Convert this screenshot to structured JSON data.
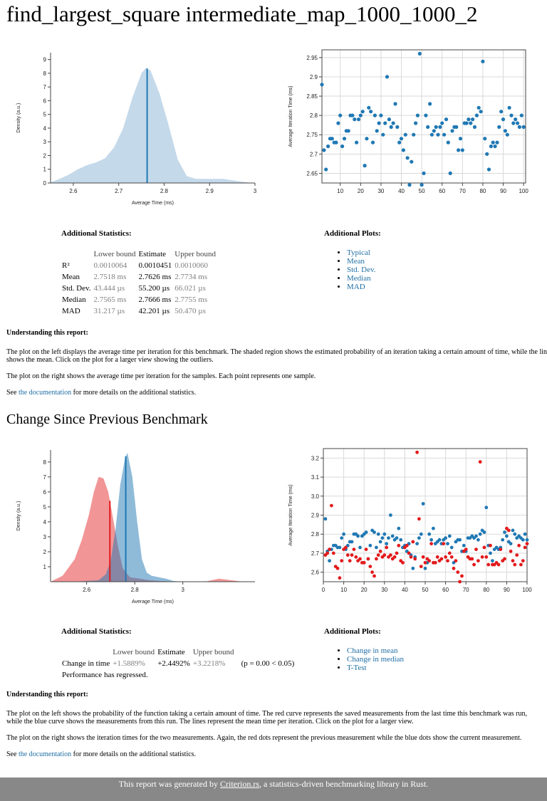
{
  "title": "find_largest_square intermediate_map_1000_1000_2",
  "pdf1": {
    "ylabel": "Density (a.u.)",
    "xlabel": "Average Time (ms)",
    "y_ticks": [
      "0",
      "1",
      "2",
      "3",
      "4",
      "5",
      "6",
      "7",
      "8",
      "9"
    ],
    "x_ticks": [
      "2.6",
      "2.7",
      "2.8",
      "2.9",
      "3"
    ]
  },
  "reg1": {
    "ylabel": "Average Iteration Time (ms)",
    "y_ticks": [
      "2.65",
      "2.7",
      "2.75",
      "2.8",
      "2.85",
      "2.9",
      "2.95"
    ],
    "x_ticks": [
      "10",
      "20",
      "30",
      "40",
      "50",
      "60",
      "70",
      "80",
      "90",
      "100"
    ]
  },
  "stats1": {
    "title": "Additional Statistics:",
    "headers": [
      "Lower bound",
      "Estimate",
      "Upper bound"
    ],
    "rows": [
      {
        "label": "R²",
        "lower": "0.0010064",
        "estimate": "0.0010451",
        "upper": "0.0010060"
      },
      {
        "label": "Mean",
        "lower": "2.7518 ms",
        "estimate": "2.7626 ms",
        "upper": "2.7734 ms"
      },
      {
        "label": "Std. Dev.",
        "lower": "43.444 µs",
        "estimate": "55.200 µs",
        "upper": "66.021 µs"
      },
      {
        "label": "Median",
        "lower": "2.7565 ms",
        "estimate": "2.7666 ms",
        "upper": "2.7755 ms"
      },
      {
        "label": "MAD",
        "lower": "31.217 µs",
        "estimate": "42.201 µs",
        "upper": "50.470 µs"
      }
    ]
  },
  "plots1": {
    "title": "Additional Plots:",
    "links": [
      "Typical",
      "Mean",
      "Std. Dev.",
      "Median",
      "MAD"
    ]
  },
  "understanding1": {
    "heading": "Understanding this report:",
    "p1": "The plot on the left displays the average time per iteration for this benchmark. The shaded region shows the estimated probability of an iteration taking a certain amount of time, while the line shows the mean. Click on the plot for a larger view showing the outliers.",
    "p2": "The plot on the right shows the average time per iteration for the samples. Each point represents one sample.",
    "see_pre": "See ",
    "doc_link": "the documentation",
    "see_post": " for more details on the additional statistics."
  },
  "change_section_title": "Change Since Previous Benchmark",
  "pdf2": {
    "ylabel": "Density (a.u.)",
    "xlabel": "Average Time (ms)",
    "y_ticks": [
      "1",
      "2",
      "3",
      "4",
      "5",
      "6",
      "7",
      "8"
    ],
    "x_ticks": [
      "2.6",
      "2.8",
      "3"
    ]
  },
  "reg2": {
    "ylabel": "Average Iteration Time (ms)",
    "y_ticks": [
      "2.6",
      "2.7",
      "2.8",
      "2.9",
      "3.0",
      "3.1",
      "3.2"
    ],
    "x_ticks": [
      "0",
      "10",
      "20",
      "30",
      "40",
      "50",
      "60",
      "70",
      "80",
      "90",
      "100"
    ]
  },
  "stats2": {
    "title": "Additional Statistics:",
    "headers": [
      "Lower bound",
      "Estimate",
      "Upper bound"
    ],
    "row_label": "Change in time",
    "lower": "+1.5889%",
    "estimate": "+2.4492%",
    "upper": "+3.2218%",
    "pvalue": "(p = 0.00 < 0.05)",
    "verdict": "Performance has regressed."
  },
  "plots2": {
    "title": "Additional Plots:",
    "links": [
      "Change in mean",
      "Change in median",
      "T-Test"
    ]
  },
  "understanding2": {
    "heading": "Understanding this report:",
    "p1": "The plot on the left shows the probability of the function taking a certain amount of time. The red curve represents the saved measurements from the last time this benchmark was run, while the blue curve shows the measurements from this run. The lines represent the mean time per iteration. Click on the plot for a larger view.",
    "p2": "The plot on the right shows the iteration times for the two measurements. Again, the red dots represent the previous measurement while the blue dots show the current measurement.",
    "see_pre": "See ",
    "doc_link": "the documentation",
    "see_post": " for more details on the additional statistics."
  },
  "footer": {
    "pre": "This report was generated by ",
    "link": "Criterion.rs",
    "post": ", a statistics-driven benchmarking library in Rust."
  },
  "colors": {
    "current": "#1f78b4",
    "current_fill": "#c4d9ea",
    "previous": "#e31a1c",
    "previous_fill": "#ef8a8b"
  },
  "chart_data": [
    {
      "type": "area",
      "name": "pdf-current",
      "title": "",
      "xlabel": "Average Time (ms)",
      "ylabel": "Density (a.u.)",
      "xlim": [
        2.55,
        3.0
      ],
      "ylim": [
        0,
        9.5
      ],
      "x": [
        2.55,
        2.57,
        2.59,
        2.61,
        2.63,
        2.65,
        2.67,
        2.69,
        2.71,
        2.73,
        2.75,
        2.76,
        2.77,
        2.79,
        2.81,
        2.83,
        2.85,
        2.87,
        2.89,
        2.91,
        2.93,
        2.95,
        2.97,
        2.99
      ],
      "y": [
        0.05,
        0.3,
        0.6,
        1.0,
        1.3,
        1.5,
        1.8,
        2.6,
        4.0,
        6.2,
        8.0,
        8.4,
        8.2,
        6.5,
        4.2,
        1.7,
        0.5,
        0.3,
        0.3,
        0.3,
        0.3,
        0.2,
        0.1,
        0.02
      ],
      "mean": 2.7626,
      "grid": false
    },
    {
      "type": "scatter",
      "name": "regression-current",
      "xlabel": "",
      "ylabel": "Average Iteration Time (ms)",
      "xlim": [
        1,
        101
      ],
      "ylim": [
        2.625,
        2.97
      ],
      "grid": true,
      "series": [
        {
          "values": [
            2.88,
            2.71,
            2.66,
            2.72,
            2.74,
            2.74,
            2.73,
            2.73,
            2.78,
            2.8,
            2.72,
            2.74,
            2.76,
            2.76,
            2.8,
            2.8,
            2.79,
            2.73,
            2.79,
            2.8,
            2.81,
            2.67,
            2.74,
            2.82,
            2.81,
            2.73,
            2.8,
            2.76,
            2.78,
            2.8,
            2.75,
            2.78,
            2.9,
            2.79,
            2.77,
            2.78,
            2.83,
            2.77,
            2.73,
            2.74,
            2.71,
            2.75,
            2.69,
            2.62,
            2.68,
            2.75,
            2.78,
            2.8,
            2.96,
            2.62,
            2.65,
            2.8,
            2.77,
            2.83,
            2.75,
            2.76,
            2.77,
            2.75,
            2.77,
            2.78,
            2.75,
            2.79,
            2.73,
            2.65,
            2.76,
            2.77,
            2.77,
            2.71,
            2.74,
            2.71,
            2.78,
            2.78,
            2.79,
            2.78,
            2.79,
            2.77,
            2.8,
            2.82,
            2.81,
            2.94,
            2.74,
            2.7,
            2.66,
            2.72,
            2.73,
            2.72,
            2.73,
            2.77,
            2.81,
            2.79,
            2.76,
            2.75,
            2.82,
            2.8,
            2.78,
            2.79,
            2.78,
            2.77,
            2.8,
            2.77
          ]
        }
      ]
    },
    {
      "type": "area",
      "name": "pdf-change",
      "xlabel": "Average Time (ms)",
      "ylabel": "Density (a.u.)",
      "xlim": [
        2.45,
        3.3
      ],
      "ylim": [
        0,
        8.8
      ],
      "series": [
        {
          "x": [
            2.45,
            2.5,
            2.55,
            2.58,
            2.61,
            2.63,
            2.65,
            2.67,
            2.69,
            2.71,
            2.73,
            2.75,
            2.78,
            2.82,
            2.86,
            2.9,
            3.0,
            3.1,
            3.15,
            3.2,
            3.25
          ],
          "values": [
            0,
            0.4,
            1.5,
            2.8,
            4.5,
            6.0,
            7.0,
            6.9,
            6.0,
            4.2,
            2.4,
            0.9,
            0.3,
            0.2,
            0.1,
            0.05,
            0,
            0.03,
            0.2,
            0.1,
            0
          ]
        },
        {
          "x": [
            2.55,
            2.6,
            2.65,
            2.68,
            2.7,
            2.72,
            2.74,
            2.76,
            2.77,
            2.79,
            2.81,
            2.83,
            2.85,
            2.87,
            2.9,
            2.93,
            2.96,
            3.0
          ],
          "values": [
            0,
            0.05,
            0.1,
            0.5,
            1.4,
            3.5,
            6.5,
            8.3,
            8.6,
            7.0,
            4.0,
            1.5,
            0.6,
            0.4,
            0.3,
            0.2,
            0.05,
            0
          ]
        }
      ],
      "means": [
        2.6966,
        2.7626
      ]
    },
    {
      "type": "scatter",
      "name": "regression-change",
      "ylabel": "Average Iteration Time (ms)",
      "xlim": [
        0,
        100
      ],
      "ylim": [
        2.55,
        3.25
      ],
      "grid": true,
      "series": [
        {
          "values": [
            2.88,
            2.71,
            2.66,
            2.72,
            2.74,
            2.74,
            2.73,
            2.73,
            2.78,
            2.8,
            2.72,
            2.74,
            2.76,
            2.76,
            2.8,
            2.8,
            2.79,
            2.73,
            2.79,
            2.8,
            2.81,
            2.67,
            2.74,
            2.82,
            2.81,
            2.73,
            2.8,
            2.76,
            2.78,
            2.8,
            2.75,
            2.78,
            2.9,
            2.79,
            2.77,
            2.78,
            2.83,
            2.77,
            2.73,
            2.74,
            2.71,
            2.75,
            2.69,
            2.62,
            2.68,
            2.75,
            2.78,
            2.8,
            2.96,
            2.62,
            2.65,
            2.8,
            2.77,
            2.83,
            2.75,
            2.76,
            2.77,
            2.75,
            2.77,
            2.78,
            2.75,
            2.79,
            2.73,
            2.65,
            2.76,
            2.77,
            2.77,
            2.71,
            2.74,
            2.71,
            2.78,
            2.78,
            2.79,
            2.78,
            2.79,
            2.77,
            2.8,
            2.82,
            2.81,
            2.94,
            2.74,
            2.7,
            2.66,
            2.72,
            2.73,
            2.72,
            2.73,
            2.77,
            2.81,
            2.79,
            2.76,
            2.75,
            2.82,
            2.8,
            2.78,
            2.79,
            2.78,
            2.77,
            2.8,
            2.77
          ]
        },
        {
          "values": [
            2.69,
            2.7,
            2.72,
            2.95,
            2.7,
            2.63,
            2.62,
            2.57,
            2.66,
            2.72,
            2.73,
            2.69,
            2.66,
            2.69,
            2.72,
            2.68,
            2.66,
            2.67,
            2.65,
            2.65,
            2.72,
            2.67,
            2.63,
            2.6,
            2.58,
            2.67,
            2.69,
            2.71,
            2.68,
            2.69,
            2.73,
            2.68,
            2.69,
            2.67,
            2.68,
            2.7,
            2.74,
            2.66,
            2.65,
            2.73,
            2.74,
            2.7,
            2.68,
            2.76,
            2.67,
            3.23,
            2.88,
            2.63,
            2.68,
            2.65,
            2.67,
            2.66,
            2.75,
            2.65,
            2.65,
            2.68,
            2.66,
            2.67,
            2.75,
            2.68,
            2.66,
            2.7,
            2.68,
            2.62,
            2.66,
            2.6,
            2.55,
            2.58,
            2.71,
            2.72,
            2.68,
            2.67,
            2.67,
            2.64,
            2.72,
            2.66,
            3.18,
            2.68,
            2.73,
            2.68,
            2.64,
            2.74,
            2.64,
            2.64,
            2.65,
            2.64,
            2.72,
            2.66,
            2.67,
            2.83,
            2.82,
            2.71,
            2.66,
            2.64,
            2.69,
            2.74,
            2.64,
            2.66,
            2.73,
            2.75
          ]
        }
      ]
    }
  ]
}
